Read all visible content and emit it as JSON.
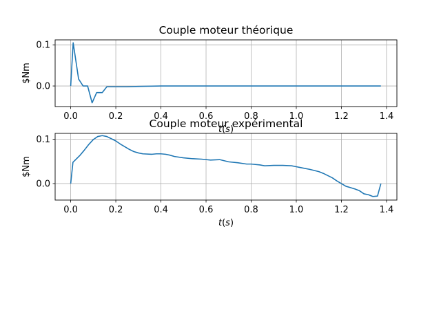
{
  "chart_data": [
    {
      "type": "line",
      "title": "Couple moteur théorique",
      "xlabel": "t(s)",
      "ylabel": "$Nm",
      "xlim": [
        -0.069,
        1.446
      ],
      "ylim": [
        -0.05,
        0.112
      ],
      "xticks": [
        {
          "value": 0.0,
          "label": "0.0"
        },
        {
          "value": 0.2,
          "label": "0.2"
        },
        {
          "value": 0.4,
          "label": "0.4"
        },
        {
          "value": 0.6,
          "label": "0.6"
        },
        {
          "value": 0.8,
          "label": "0.8"
        },
        {
          "value": 1.0,
          "label": "1.0"
        },
        {
          "value": 1.2,
          "label": "1.2"
        },
        {
          "value": 1.4,
          "label": "1.4"
        }
      ],
      "yticks": [
        {
          "value": 0.0,
          "label": "0.0"
        },
        {
          "value": 0.1,
          "label": "0.1"
        }
      ],
      "grid": true,
      "color": "#1f77b4",
      "series": [
        {
          "x": [
            0.0,
            0.011,
            0.035,
            0.055,
            0.075,
            0.095,
            0.115,
            0.14,
            0.16,
            0.2,
            0.25,
            0.3,
            0.4,
            0.6,
            0.8,
            1.0,
            1.2,
            1.375
          ],
          "y": [
            0.0,
            0.105,
            0.017,
            0.0,
            0.0,
            -0.041,
            -0.016,
            -0.016,
            -0.002,
            -0.002,
            -0.002,
            -0.001,
            0.0,
            0.0,
            0.0,
            0.0,
            0.0,
            0.0
          ]
        }
      ]
    },
    {
      "type": "line",
      "title": "Couple moteur expérimental",
      "xlabel": "t(s)",
      "ylabel": "$Nm",
      "xlim": [
        -0.069,
        1.446
      ],
      "ylim": [
        -0.037,
        0.113
      ],
      "xticks": [
        {
          "value": 0.0,
          "label": "0.0"
        },
        {
          "value": 0.2,
          "label": "0.2"
        },
        {
          "value": 0.4,
          "label": "0.4"
        },
        {
          "value": 0.6,
          "label": "0.6"
        },
        {
          "value": 0.8,
          "label": "0.8"
        },
        {
          "value": 1.0,
          "label": "1.0"
        },
        {
          "value": 1.2,
          "label": "1.2"
        },
        {
          "value": 1.4,
          "label": "1.4"
        }
      ],
      "yticks": [
        {
          "value": 0.0,
          "label": "0.0"
        },
        {
          "value": 0.1,
          "label": "0.1"
        }
      ],
      "grid": true,
      "color": "#1f77b4",
      "series": [
        {
          "x": [
            0.0,
            0.01,
            0.04,
            0.06,
            0.08,
            0.1,
            0.12,
            0.14,
            0.16,
            0.18,
            0.2,
            0.22,
            0.24,
            0.26,
            0.28,
            0.3,
            0.32,
            0.36,
            0.38,
            0.4,
            0.42,
            0.44,
            0.46,
            0.5,
            0.54,
            0.58,
            0.62,
            0.66,
            0.7,
            0.74,
            0.78,
            0.8,
            0.84,
            0.86,
            0.9,
            0.94,
            0.98,
            1.0,
            1.02,
            1.06,
            1.1,
            1.12,
            1.14,
            1.16,
            1.18,
            1.2,
            1.22,
            1.24,
            1.26,
            1.28,
            1.3,
            1.32,
            1.34,
            1.36,
            1.375
          ],
          "y": [
            0.0,
            0.048,
            0.063,
            0.075,
            0.088,
            0.099,
            0.106,
            0.108,
            0.106,
            0.101,
            0.096,
            0.089,
            0.083,
            0.077,
            0.072,
            0.069,
            0.067,
            0.066,
            0.067,
            0.067,
            0.066,
            0.064,
            0.061,
            0.058,
            0.056,
            0.055,
            0.053,
            0.054,
            0.049,
            0.047,
            0.044,
            0.044,
            0.042,
            0.04,
            0.041,
            0.041,
            0.04,
            0.038,
            0.036,
            0.032,
            0.027,
            0.023,
            0.018,
            0.013,
            0.006,
            0.0,
            -0.006,
            -0.009,
            -0.012,
            -0.016,
            -0.023,
            -0.025,
            -0.029,
            -0.028,
            0.0
          ]
        }
      ]
    }
  ]
}
